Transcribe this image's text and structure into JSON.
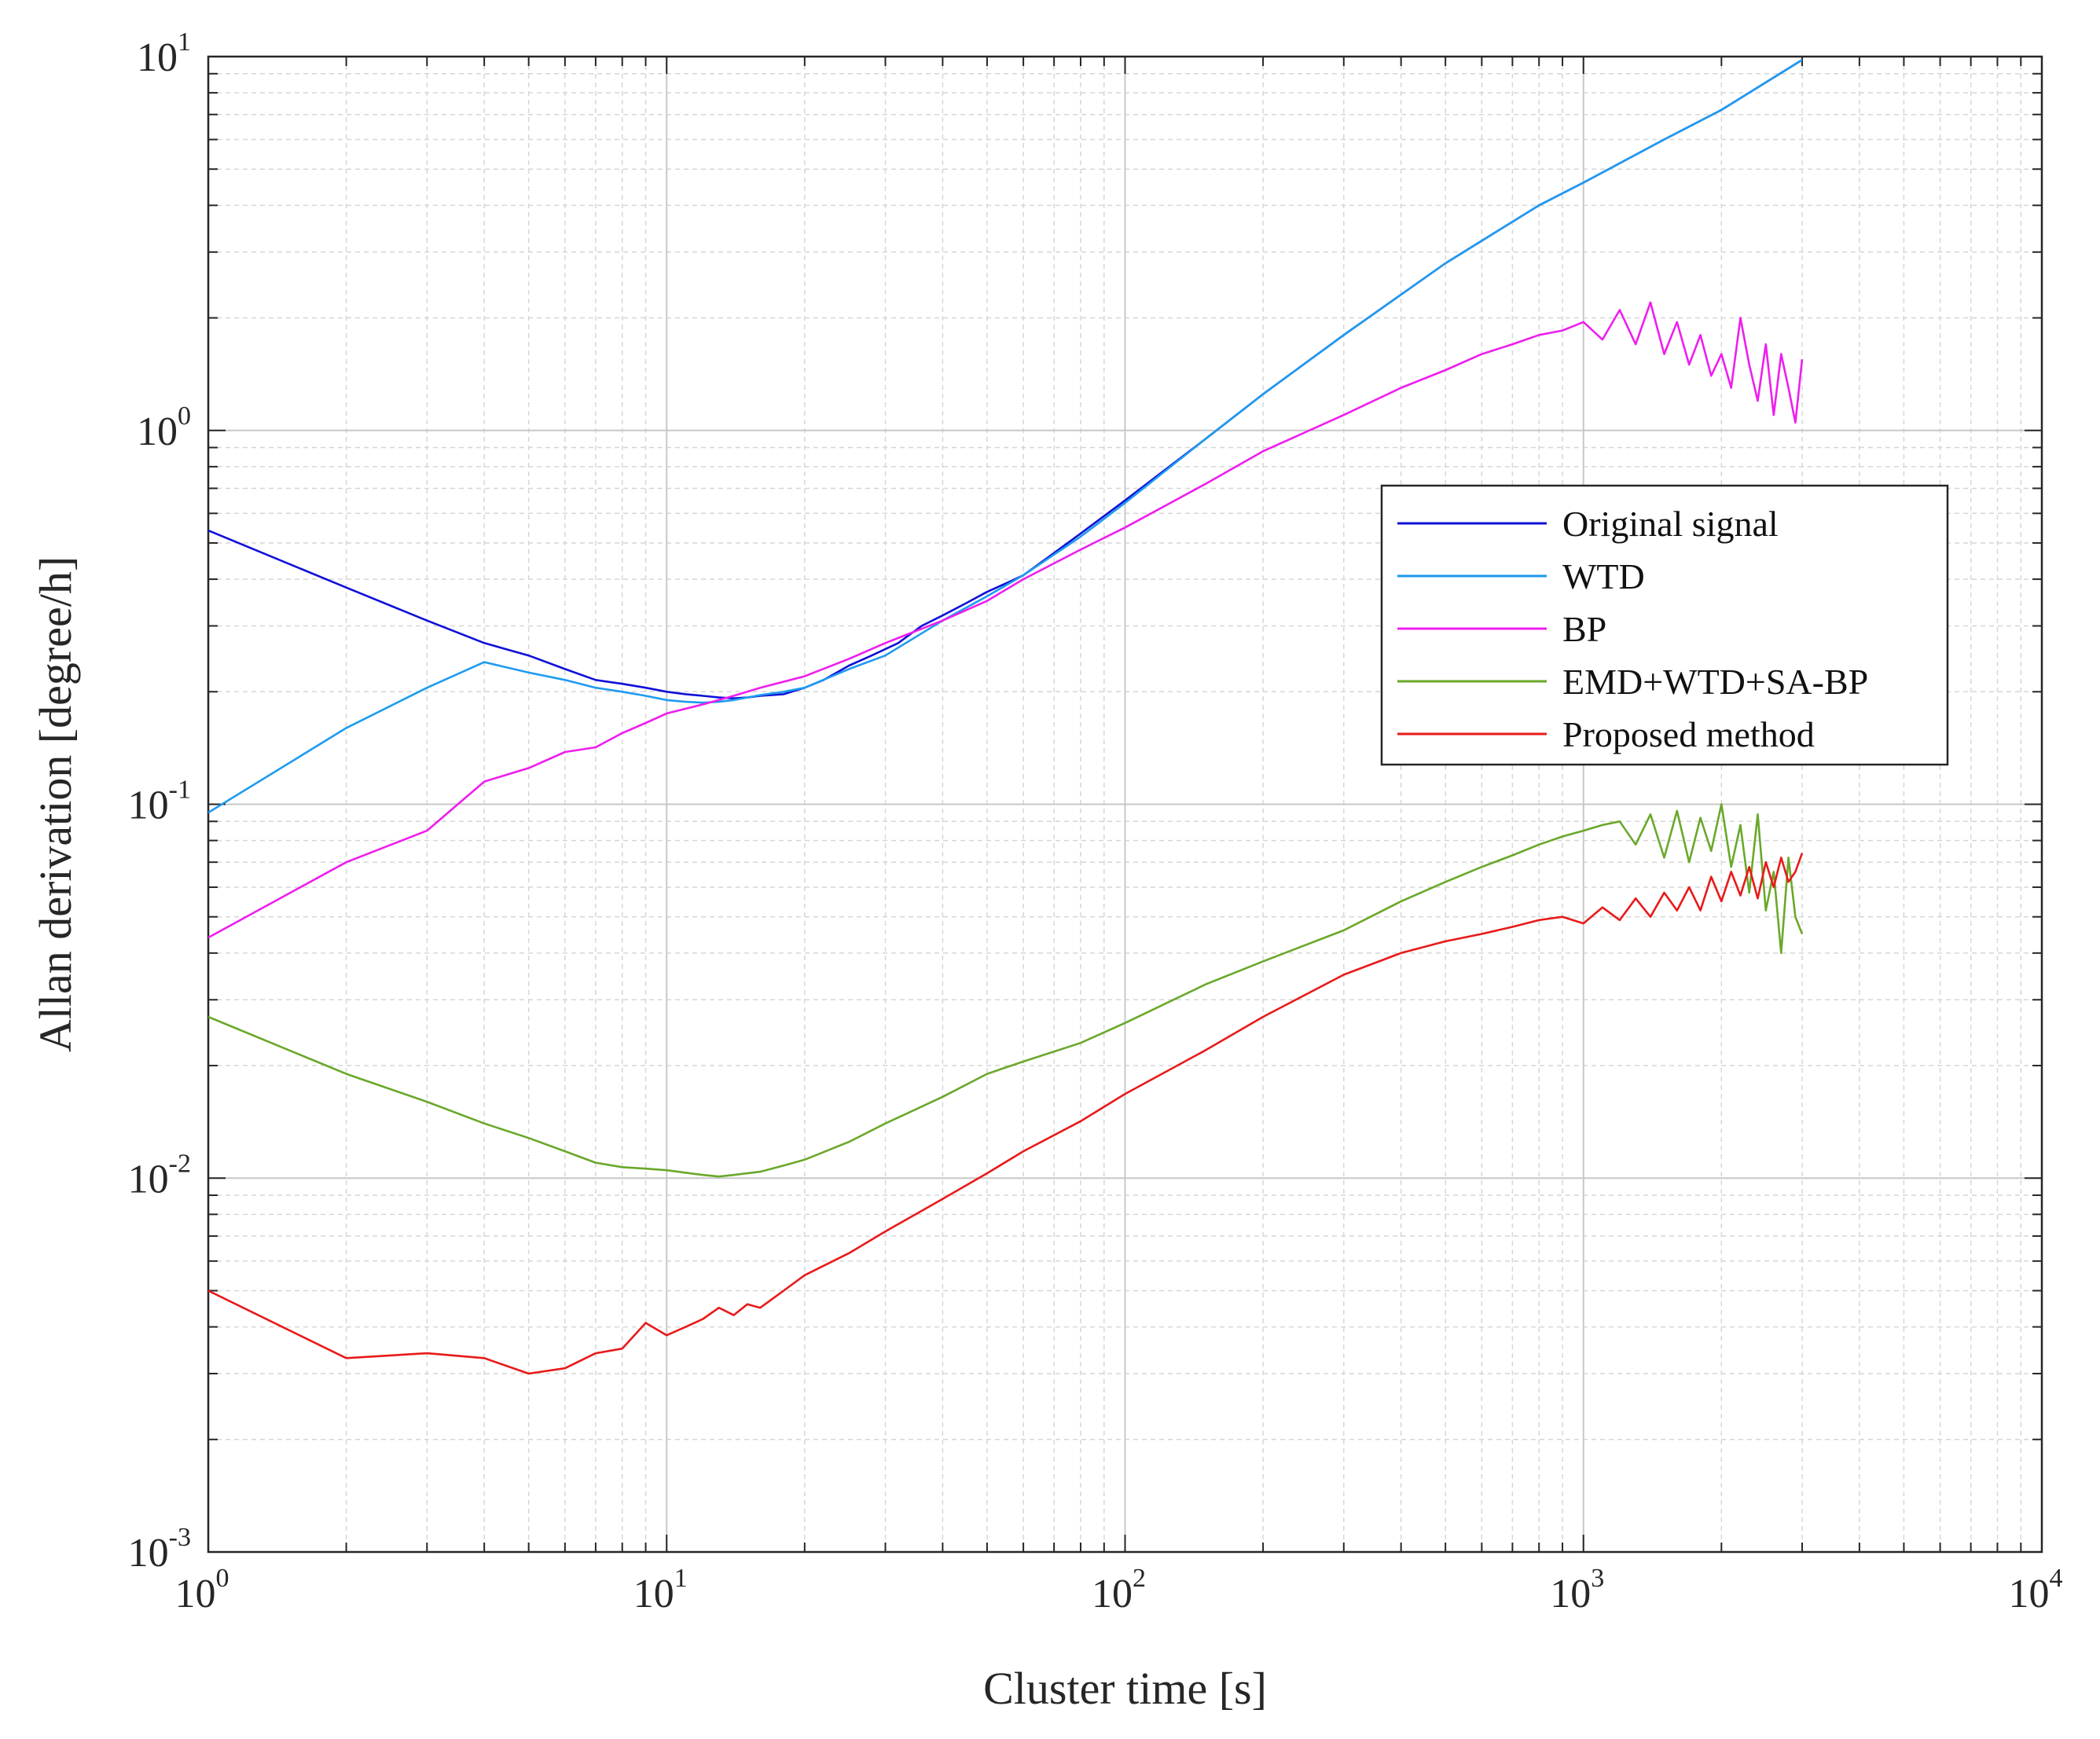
{
  "chart_data": {
    "type": "line",
    "title": "",
    "xlabel": "Cluster time [s]",
    "ylabel": "Allan derivation [degree/h]",
    "xscale": "log",
    "yscale": "log",
    "xlim": [
      1,
      10000
    ],
    "ylim": [
      0.001,
      10
    ],
    "grid": true,
    "minor_grid": true,
    "legend_position": "upper-right (inside, mid-height)",
    "x_ticks": [
      {
        "base": "10",
        "exp": "0"
      },
      {
        "base": "10",
        "exp": "1"
      },
      {
        "base": "10",
        "exp": "2"
      },
      {
        "base": "10",
        "exp": "3"
      },
      {
        "base": "10",
        "exp": "4"
      }
    ],
    "y_ticks": [
      {
        "base": "10",
        "exp": "-3"
      },
      {
        "base": "10",
        "exp": "-2"
      },
      {
        "base": "10",
        "exp": "-1"
      },
      {
        "base": "10",
        "exp": "0"
      },
      {
        "base": "10",
        "exp": "1"
      }
    ],
    "series": [
      {
        "name": "Original signal",
        "color": "#1010d8",
        "x": [
          1,
          2,
          3,
          4,
          5,
          6,
          7,
          8,
          9,
          10,
          11,
          12,
          13,
          14,
          15,
          16,
          17,
          18,
          20,
          22,
          25,
          28,
          32,
          36,
          40,
          45,
          50,
          55,
          60,
          70,
          80,
          100,
          150,
          200,
          300,
          500,
          800,
          1000,
          1500,
          2000,
          3000
        ],
        "y": [
          0.54,
          0.38,
          0.31,
          0.27,
          0.25,
          0.23,
          0.215,
          0.21,
          0.205,
          0.2,
          0.197,
          0.195,
          0.193,
          0.192,
          0.193,
          0.195,
          0.196,
          0.197,
          0.205,
          0.215,
          0.235,
          0.25,
          0.27,
          0.3,
          0.32,
          0.345,
          0.37,
          0.39,
          0.41,
          0.47,
          0.53,
          0.65,
          0.95,
          1.25,
          1.8,
          2.8,
          4.0,
          4.6,
          6.0,
          7.2,
          9.8
        ]
      },
      {
        "name": "WTD",
        "color": "#1e9bf0",
        "x": [
          1,
          2,
          3,
          4,
          5,
          6,
          7,
          8,
          9,
          10,
          11,
          12,
          13,
          14,
          15,
          16,
          18,
          20,
          25,
          30,
          40,
          50,
          60,
          80,
          100,
          150,
          200,
          300,
          500,
          800,
          1000,
          1500,
          2000,
          3000
        ],
        "y": [
          0.095,
          0.16,
          0.205,
          0.24,
          0.225,
          0.215,
          0.205,
          0.2,
          0.195,
          0.19,
          0.188,
          0.187,
          0.188,
          0.19,
          0.193,
          0.196,
          0.2,
          0.205,
          0.23,
          0.25,
          0.31,
          0.36,
          0.41,
          0.52,
          0.64,
          0.95,
          1.25,
          1.8,
          2.8,
          4.0,
          4.6,
          6.0,
          7.2,
          9.8
        ]
      },
      {
        "name": "BP",
        "color": "#ee1eee",
        "x": [
          1,
          2,
          3,
          4,
          5,
          6,
          7,
          8,
          9,
          10,
          12,
          14,
          16,
          20,
          25,
          30,
          40,
          50,
          60,
          80,
          100,
          150,
          200,
          300,
          400,
          500,
          600,
          700,
          800,
          900,
          1000,
          1100,
          1200,
          1300,
          1400,
          1500,
          1600,
          1700,
          1800,
          1900,
          2000,
          2100,
          2200,
          2300,
          2400,
          2500,
          2600,
          2700,
          2800,
          2900,
          3000
        ],
        "y": [
          0.044,
          0.07,
          0.085,
          0.115,
          0.125,
          0.138,
          0.142,
          0.155,
          0.165,
          0.175,
          0.185,
          0.195,
          0.205,
          0.22,
          0.245,
          0.27,
          0.31,
          0.35,
          0.4,
          0.48,
          0.55,
          0.72,
          0.88,
          1.1,
          1.3,
          1.45,
          1.6,
          1.7,
          1.8,
          1.85,
          1.95,
          1.75,
          2.1,
          1.7,
          2.2,
          1.6,
          1.95,
          1.5,
          1.8,
          1.4,
          1.6,
          1.3,
          2.0,
          1.5,
          1.2,
          1.7,
          1.1,
          1.6,
          1.3,
          1.05,
          1.55
        ]
      },
      {
        "name": "EMD+WTD+SA-BP",
        "color": "#6aa82a",
        "x": [
          1,
          2,
          3,
          4,
          5,
          6,
          7,
          8,
          9,
          10,
          12,
          13,
          14,
          16,
          18,
          20,
          25,
          30,
          40,
          50,
          60,
          80,
          100,
          150,
          200,
          300,
          400,
          500,
          600,
          700,
          800,
          900,
          1000,
          1100,
          1200,
          1300,
          1400,
          1500,
          1600,
          1700,
          1800,
          1900,
          2000,
          2100,
          2200,
          2300,
          2400,
          2500,
          2600,
          2700,
          2800,
          2900,
          3000
        ],
        "y": [
          0.027,
          0.019,
          0.016,
          0.014,
          0.0128,
          0.0118,
          0.011,
          0.0107,
          0.0106,
          0.0105,
          0.0102,
          0.0101,
          0.0102,
          0.0104,
          0.0108,
          0.0112,
          0.0125,
          0.014,
          0.0165,
          0.019,
          0.0205,
          0.023,
          0.026,
          0.033,
          0.038,
          0.046,
          0.055,
          0.062,
          0.068,
          0.073,
          0.078,
          0.082,
          0.085,
          0.088,
          0.09,
          0.078,
          0.094,
          0.072,
          0.096,
          0.07,
          0.092,
          0.075,
          0.1,
          0.068,
          0.088,
          0.058,
          0.094,
          0.052,
          0.066,
          0.04,
          0.072,
          0.05,
          0.045
        ]
      },
      {
        "name": "Proposed method",
        "color": "#e81a1a",
        "x": [
          1,
          2,
          3,
          4,
          5,
          6,
          7,
          8,
          9,
          10,
          11,
          12,
          13,
          14,
          15,
          16,
          18,
          20,
          25,
          30,
          40,
          50,
          60,
          80,
          100,
          150,
          200,
          300,
          400,
          500,
          600,
          700,
          800,
          900,
          1000,
          1100,
          1200,
          1300,
          1400,
          1500,
          1600,
          1700,
          1800,
          1900,
          2000,
          2100,
          2200,
          2300,
          2400,
          2500,
          2600,
          2700,
          2800,
          2900,
          3000
        ],
        "y": [
          0.005,
          0.0033,
          0.0034,
          0.0033,
          0.003,
          0.0031,
          0.0034,
          0.0035,
          0.0041,
          0.0038,
          0.004,
          0.0042,
          0.0045,
          0.0043,
          0.0046,
          0.0045,
          0.005,
          0.0055,
          0.0063,
          0.0072,
          0.0088,
          0.0103,
          0.0118,
          0.0142,
          0.0168,
          0.022,
          0.027,
          0.035,
          0.04,
          0.043,
          0.045,
          0.047,
          0.049,
          0.05,
          0.048,
          0.053,
          0.049,
          0.056,
          0.05,
          0.058,
          0.052,
          0.06,
          0.052,
          0.064,
          0.055,
          0.066,
          0.057,
          0.068,
          0.056,
          0.07,
          0.06,
          0.072,
          0.062,
          0.066,
          0.074
        ]
      }
    ]
  }
}
